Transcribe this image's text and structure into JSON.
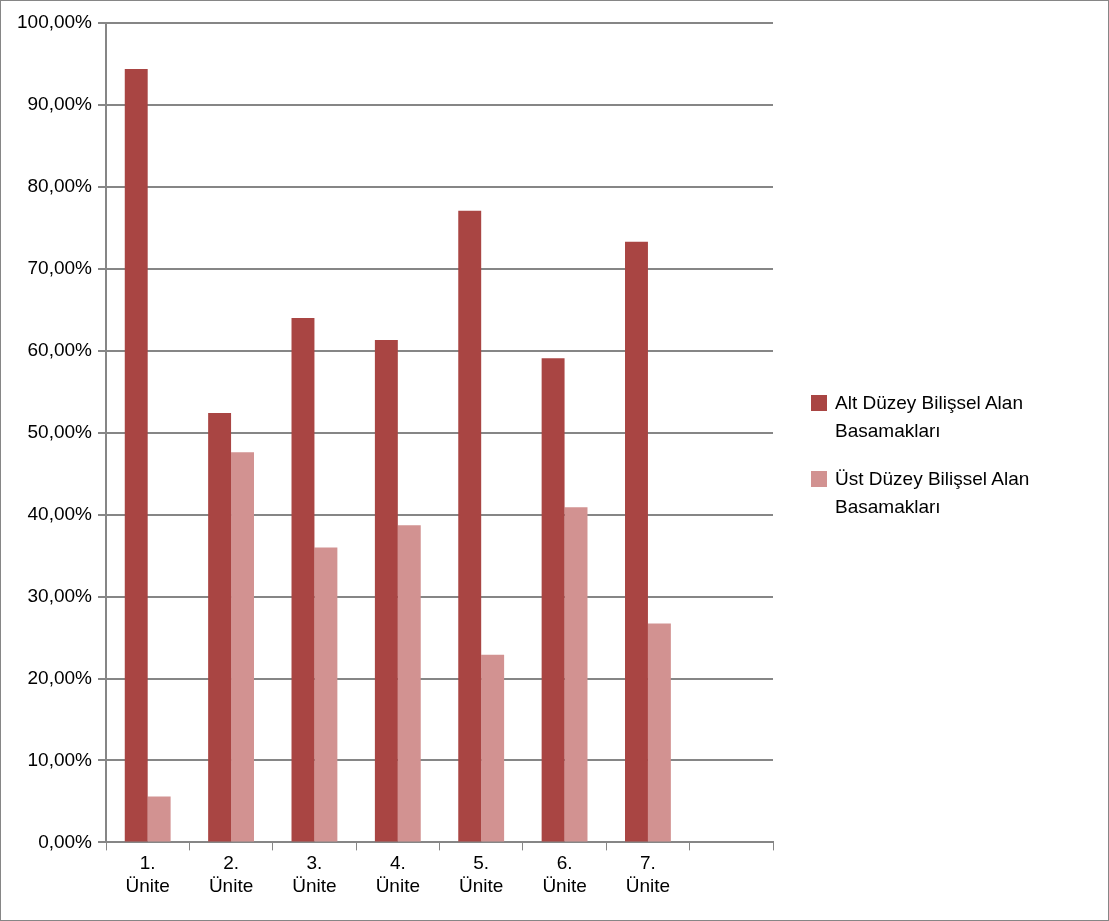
{
  "chart_data": {
    "type": "bar",
    "categories": [
      "1. Ünite",
      "2. Ünite",
      "3. Ünite",
      "4. Ünite",
      "5. Ünite",
      "6. Ünite",
      "7. Ünite",
      null
    ],
    "series": [
      {
        "name": "Alt Düzey Bilişsel Alan Basamakları",
        "color": "#a94543",
        "values": [
          94.4,
          52.4,
          64,
          61.3,
          77.1,
          59.1,
          73.3,
          null
        ]
      },
      {
        "name": "Üst Düzey Bilişsel Alan Basamakları",
        "color": "#d29291",
        "values": [
          5.6,
          47.6,
          36,
          38.7,
          22.9,
          40.9,
          26.7,
          null
        ]
      }
    ],
    "ylim": [
      0,
      100
    ],
    "yticks": [
      {
        "value": 0,
        "label": "0,00%"
      },
      {
        "value": 10,
        "label": "10,00%"
      },
      {
        "value": 20,
        "label": "20,00%"
      },
      {
        "value": 30,
        "label": "30,00%"
      },
      {
        "value": 40,
        "label": "40,00%"
      },
      {
        "value": 50,
        "label": "50,00%"
      },
      {
        "value": 60,
        "label": "60,00%"
      },
      {
        "value": 70,
        "label": "70,00%"
      },
      {
        "value": 80,
        "label": "80,00%"
      },
      {
        "value": 90,
        "label": "90,00%"
      },
      {
        "value": 100,
        "label": "100,00%"
      }
    ],
    "grid": "y",
    "legend": "right"
  }
}
